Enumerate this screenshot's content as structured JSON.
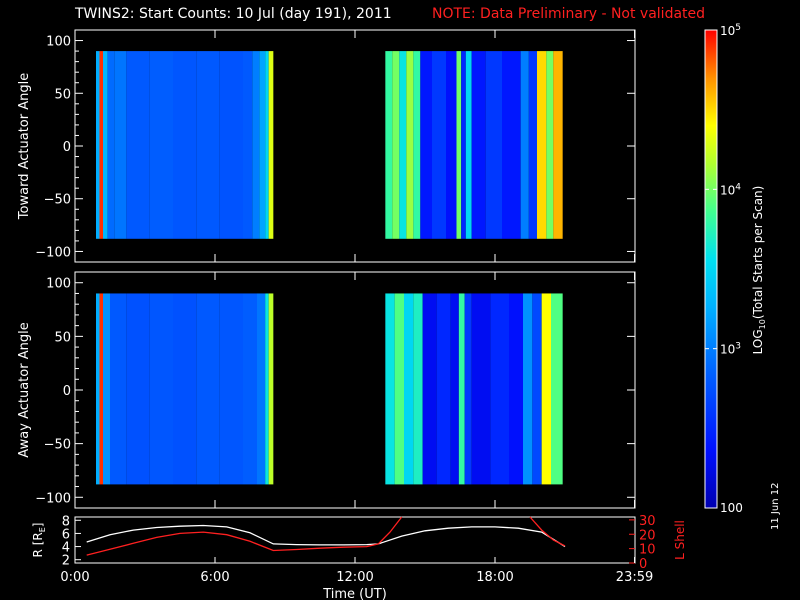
{
  "title": {
    "main": "TWINS2: Start Counts: 10 Jul (day 191), 2011",
    "note": "NOTE: Data Preliminary - Not validated"
  },
  "datestamp": "11 Jun 12",
  "colors": {
    "background": "#000000",
    "axes": "#ffffff",
    "note": "#ff2020",
    "r_line": "#ffffff",
    "l_line": "#ff2020"
  },
  "chart_data": [
    {
      "type": "heatmap",
      "name": "toward",
      "ylabel": "Toward Actuator Angle",
      "ylim": [
        -110,
        110
      ],
      "yticks": [
        100,
        50,
        0,
        -50,
        -100
      ],
      "xlim": [
        0,
        24
      ],
      "angle_range": [
        -88,
        90
      ],
      "segments": [
        {
          "x": [
            0.9,
            8.5
          ],
          "columns": [
            {
              "x": 0.9,
              "level": 3.25
            },
            {
              "x": 1.05,
              "level": 4.9
            },
            {
              "x": 1.2,
              "level": 3.3
            },
            {
              "x": 1.4,
              "level": 2.9
            },
            {
              "x": 1.7,
              "level": 2.95
            },
            {
              "x": 2.2,
              "level": 2.8
            },
            {
              "x": 3.2,
              "level": 2.82
            },
            {
              "x": 4.2,
              "level": 2.78
            },
            {
              "x": 5.2,
              "level": 2.8
            },
            {
              "x": 6.2,
              "level": 2.76
            },
            {
              "x": 7.2,
              "level": 2.8
            },
            {
              "x": 7.6,
              "level": 3.0
            },
            {
              "x": 7.9,
              "level": 3.2
            },
            {
              "x": 8.15,
              "level": 3.5
            },
            {
              "x": 8.3,
              "level": 4.3
            }
          ]
        },
        {
          "x": [
            13.3,
            20.9
          ],
          "columns": [
            {
              "x": 13.3,
              "level": 3.8
            },
            {
              "x": 13.6,
              "level": 4.0
            },
            {
              "x": 13.9,
              "level": 3.6
            },
            {
              "x": 14.2,
              "level": 4.1
            },
            {
              "x": 14.5,
              "level": 3.8
            },
            {
              "x": 14.8,
              "level": 2.4
            },
            {
              "x": 15.3,
              "level": 2.6
            },
            {
              "x": 15.9,
              "level": 2.35
            },
            {
              "x": 16.35,
              "level": 4.0
            },
            {
              "x": 16.55,
              "level": 2.5
            },
            {
              "x": 16.75,
              "level": 3.5
            },
            {
              "x": 17.0,
              "level": 2.4
            },
            {
              "x": 17.6,
              "level": 2.6
            },
            {
              "x": 18.3,
              "level": 2.4
            },
            {
              "x": 19.1,
              "level": 3.0
            },
            {
              "x": 19.45,
              "level": 2.6
            },
            {
              "x": 19.8,
              "level": 4.5
            },
            {
              "x": 20.2,
              "level": 4.0
            },
            {
              "x": 20.5,
              "level": 4.6
            }
          ]
        }
      ]
    },
    {
      "type": "heatmap",
      "name": "away",
      "ylabel": "Away Actuator Angle",
      "ylim": [
        -110,
        110
      ],
      "yticks": [
        100,
        50,
        0,
        -50,
        -100
      ],
      "xlim": [
        0,
        24
      ],
      "angle_range": [
        -88,
        90
      ],
      "segments": [
        {
          "x": [
            0.9,
            8.5
          ],
          "columns": [
            {
              "x": 0.9,
              "level": 3.25
            },
            {
              "x": 1.05,
              "level": 4.9
            },
            {
              "x": 1.2,
              "level": 3.1
            },
            {
              "x": 1.5,
              "level": 2.8
            },
            {
              "x": 2.2,
              "level": 2.75
            },
            {
              "x": 3.2,
              "level": 2.78
            },
            {
              "x": 4.2,
              "level": 2.75
            },
            {
              "x": 5.2,
              "level": 2.8
            },
            {
              "x": 6.2,
              "level": 2.78
            },
            {
              "x": 7.2,
              "level": 2.82
            },
            {
              "x": 7.8,
              "level": 2.95
            },
            {
              "x": 8.15,
              "level": 3.6
            },
            {
              "x": 8.3,
              "level": 4.2
            }
          ]
        },
        {
          "x": [
            13.3,
            20.9
          ],
          "columns": [
            {
              "x": 13.3,
              "level": 3.6
            },
            {
              "x": 13.7,
              "level": 3.9
            },
            {
              "x": 14.1,
              "level": 3.5
            },
            {
              "x": 14.5,
              "level": 3.7
            },
            {
              "x": 14.9,
              "level": 2.3
            },
            {
              "x": 15.5,
              "level": 2.5
            },
            {
              "x": 16.1,
              "level": 2.3
            },
            {
              "x": 16.45,
              "level": 3.8
            },
            {
              "x": 16.7,
              "level": 2.6
            },
            {
              "x": 17.0,
              "level": 2.3
            },
            {
              "x": 17.8,
              "level": 2.5
            },
            {
              "x": 18.6,
              "level": 2.35
            },
            {
              "x": 19.2,
              "level": 3.1
            },
            {
              "x": 19.6,
              "level": 2.7
            },
            {
              "x": 20.0,
              "level": 4.4
            },
            {
              "x": 20.4,
              "level": 3.9
            }
          ]
        }
      ]
    },
    {
      "type": "line",
      "name": "orbit",
      "xlabel": "Time (UT)",
      "xlim": [
        0,
        24
      ],
      "xticks": [
        "0:00",
        "6:00",
        "12:00",
        "18:00",
        "23:59"
      ],
      "xtick_values": [
        0,
        6,
        12,
        18,
        23.98
      ],
      "left_axis": {
        "label": "R [RE]",
        "label_base": "R [R",
        "label_sub": "E",
        "label_end": "]",
        "ylim": [
          1.5,
          8.5
        ],
        "yticks": [
          2,
          4,
          6,
          8
        ]
      },
      "right_axis": {
        "label": "L Shell",
        "ylim": [
          0,
          32
        ],
        "yticks": [
          0,
          10,
          20,
          30
        ]
      },
      "series": [
        {
          "axis": "left",
          "color": "#ffffff",
          "x": [
            0.5,
            1.5,
            2.5,
            3.5,
            4.5,
            5.5,
            6.5,
            7.5,
            8.5,
            9.5,
            10.5,
            11.5,
            12.5,
            13,
            14,
            15,
            16,
            17,
            18,
            19,
            20,
            21
          ],
          "y": [
            4.7,
            5.8,
            6.5,
            6.9,
            7.1,
            7.2,
            7.0,
            6.1,
            4.4,
            4.3,
            4.25,
            4.25,
            4.3,
            4.4,
            5.6,
            6.4,
            6.8,
            7.0,
            7.0,
            6.8,
            6.2,
            4.0
          ]
        },
        {
          "axis": "left",
          "color": "#ff2020",
          "x": [
            0.5,
            1.5,
            2.5,
            3.5,
            4.5,
            5.5,
            6.5,
            7.5,
            8.5,
            9.5,
            10.5,
            11.5,
            12.5,
            13,
            13.5,
            14
          ],
          "y": [
            2.7,
            3.6,
            4.5,
            5.4,
            6.0,
            6.2,
            5.8,
            4.8,
            3.4,
            3.55,
            3.75,
            3.9,
            4.0,
            4.4,
            6.2,
            8.5
          ]
        },
        {
          "axis": "left",
          "color": "#ff2020",
          "x": [
            19.5,
            20,
            20.5,
            21
          ],
          "y": [
            8.5,
            6.5,
            5.0,
            4.1
          ]
        }
      ]
    }
  ],
  "colorbar": {
    "label": "LOG10(Total Starts per Scan)",
    "label_base": "LOG",
    "label_sub": "10",
    "label_end": "(Total Starts per Scan)",
    "range_log": [
      2,
      5
    ],
    "ticks": [
      {
        "value": 5,
        "base": "10",
        "exp": "5"
      },
      {
        "value": 4,
        "base": "10",
        "exp": "4"
      },
      {
        "value": 3,
        "base": "10",
        "exp": "3"
      },
      {
        "value": 2,
        "base": "100",
        "exp": ""
      }
    ]
  }
}
